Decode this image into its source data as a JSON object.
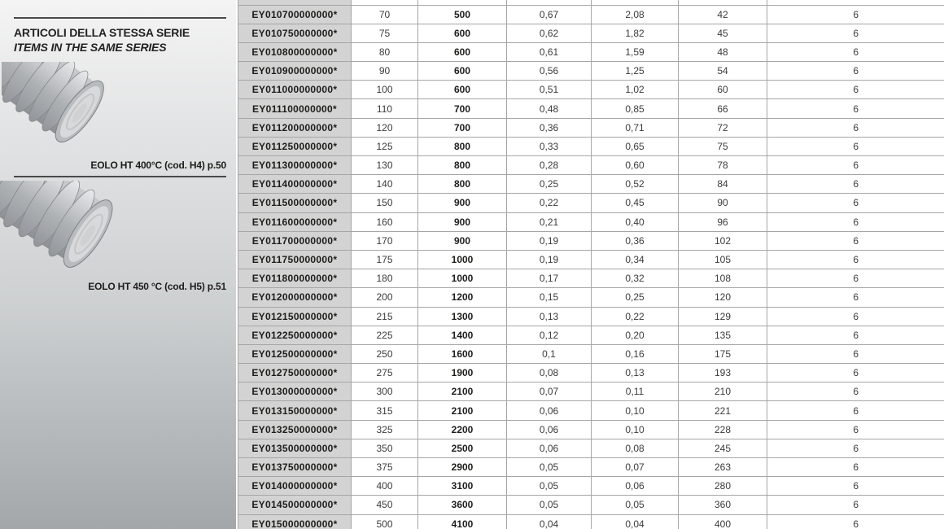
{
  "sidebar": {
    "heading_line1": "ARTICOLI DELLA STESSA SERIE",
    "heading_line2": "ITEMS IN THE SAME SERIES",
    "products": [
      {
        "caption": "EOLO HT 400°C (cod. H4) p.50"
      },
      {
        "caption": "EOLO HT 450 °C (cod. H5) p.51"
      }
    ]
  },
  "table": {
    "rows": [
      [
        "EY010700000000*",
        "70",
        "500",
        "0,67",
        "2,08",
        "42",
        "6"
      ],
      [
        "EY010750000000*",
        "75",
        "600",
        "0,62",
        "1,82",
        "45",
        "6"
      ],
      [
        "EY010800000000*",
        "80",
        "600",
        "0,61",
        "1,59",
        "48",
        "6"
      ],
      [
        "EY010900000000*",
        "90",
        "600",
        "0,56",
        "1,25",
        "54",
        "6"
      ],
      [
        "EY011000000000*",
        "100",
        "600",
        "0,51",
        "1,02",
        "60",
        "6"
      ],
      [
        "EY011100000000*",
        "110",
        "700",
        "0,48",
        "0,85",
        "66",
        "6"
      ],
      [
        "EY011200000000*",
        "120",
        "700",
        "0,36",
        "0,71",
        "72",
        "6"
      ],
      [
        "EY011250000000*",
        "125",
        "800",
        "0,33",
        "0,65",
        "75",
        "6"
      ],
      [
        "EY011300000000*",
        "130",
        "800",
        "0,28",
        "0,60",
        "78",
        "6"
      ],
      [
        "EY011400000000*",
        "140",
        "800",
        "0,25",
        "0,52",
        "84",
        "6"
      ],
      [
        "EY011500000000*",
        "150",
        "900",
        "0,22",
        "0,45",
        "90",
        "6"
      ],
      [
        "EY011600000000*",
        "160",
        "900",
        "0,21",
        "0,40",
        "96",
        "6"
      ],
      [
        "EY011700000000*",
        "170",
        "900",
        "0,19",
        "0,36",
        "102",
        "6"
      ],
      [
        "EY011750000000*",
        "175",
        "1000",
        "0,19",
        "0,34",
        "105",
        "6"
      ],
      [
        "EY011800000000*",
        "180",
        "1000",
        "0,17",
        "0,32",
        "108",
        "6"
      ],
      [
        "EY012000000000*",
        "200",
        "1200",
        "0,15",
        "0,25",
        "120",
        "6"
      ],
      [
        "EY012150000000*",
        "215",
        "1300",
        "0,13",
        "0,22",
        "129",
        "6"
      ],
      [
        "EY012250000000*",
        "225",
        "1400",
        "0,12",
        "0,20",
        "135",
        "6"
      ],
      [
        "EY012500000000*",
        "250",
        "1600",
        "0,1",
        "0,16",
        "175",
        "6"
      ],
      [
        "EY012750000000*",
        "275",
        "1900",
        "0,08",
        "0,13",
        "193",
        "6"
      ],
      [
        "EY013000000000*",
        "300",
        "2100",
        "0,07",
        "0,11",
        "210",
        "6"
      ],
      [
        "EY013150000000*",
        "315",
        "2100",
        "0,06",
        "0,10",
        "221",
        "6"
      ],
      [
        "EY013250000000*",
        "325",
        "2200",
        "0,06",
        "0,10",
        "228",
        "6"
      ],
      [
        "EY013500000000*",
        "350",
        "2500",
        "0,06",
        "0,08",
        "245",
        "6"
      ],
      [
        "EY013750000000*",
        "375",
        "2900",
        "0,05",
        "0,07",
        "263",
        "6"
      ],
      [
        "EY014000000000*",
        "400",
        "3100",
        "0,05",
        "0,06",
        "280",
        "6"
      ],
      [
        "EY014500000000*",
        "450",
        "3600",
        "0,05",
        "0,05",
        "360",
        "6"
      ],
      [
        "EY015000000000*",
        "500",
        "4100",
        "0,04",
        "0,04",
        "400",
        "6"
      ]
    ]
  },
  "colors": {
    "code_column_bg": "#d3d3d3",
    "table_border": "#a6a6a6",
    "rule": "#4a4a4a",
    "sidebar_gradient_top": "#f4f4f4",
    "sidebar_gradient_bottom": "#a3a7aa"
  }
}
